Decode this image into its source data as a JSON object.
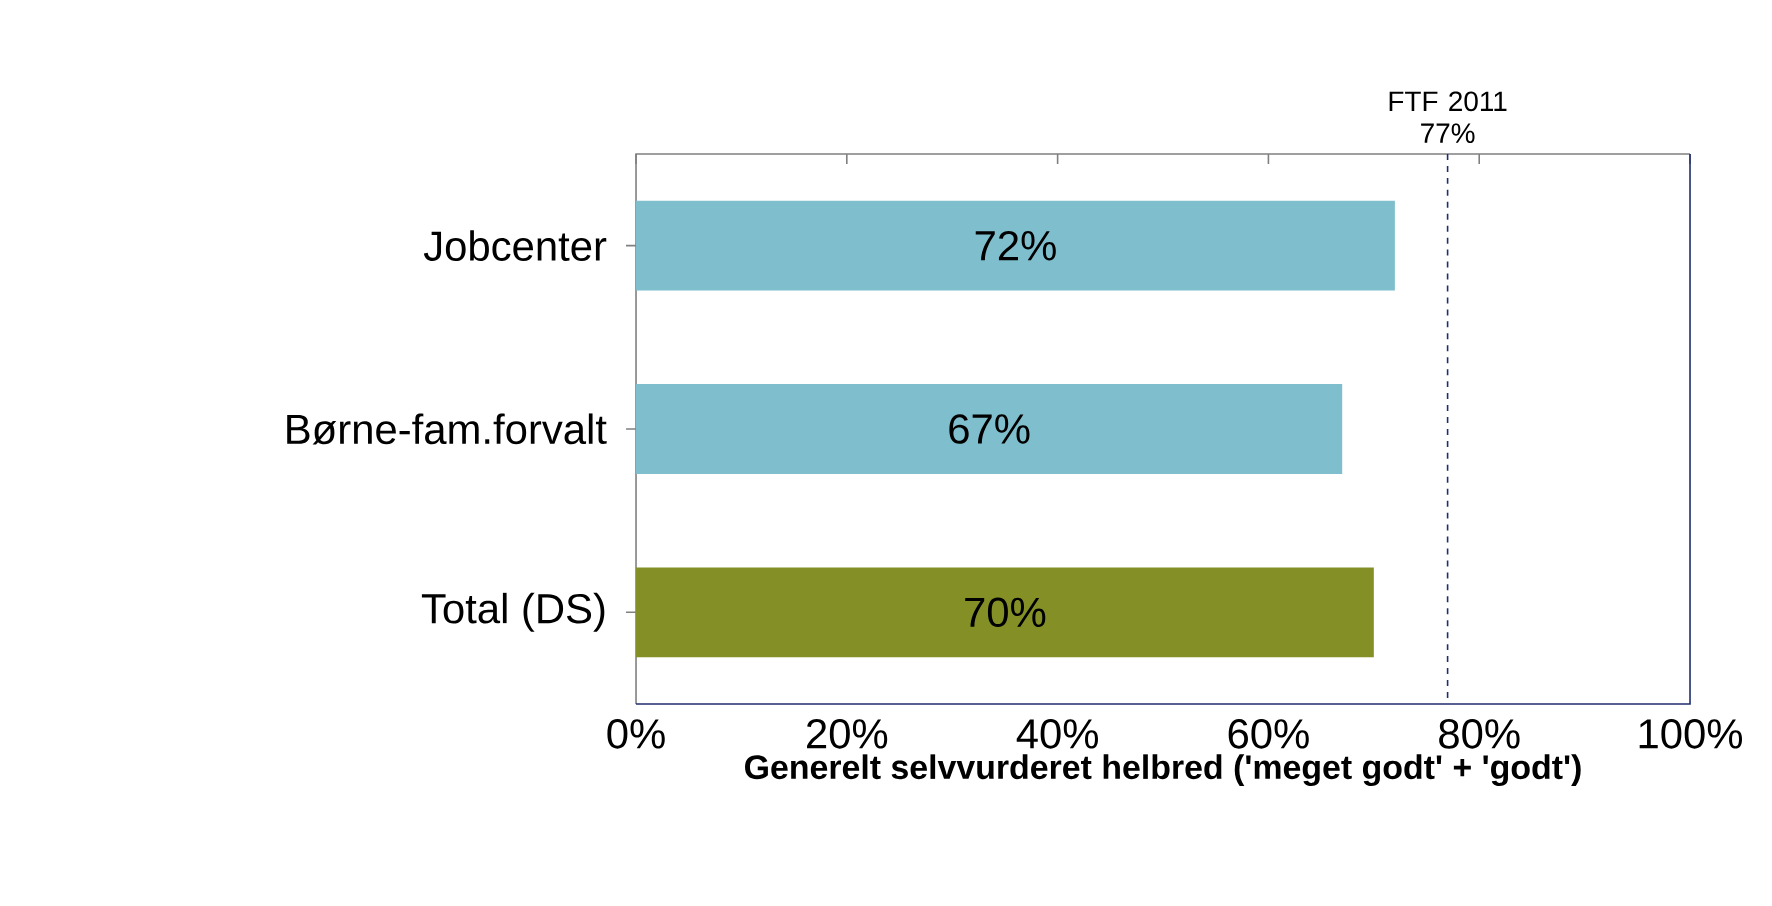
{
  "chart_data": {
    "type": "bar",
    "orientation": "horizontal",
    "xlabel": "Generelt selvvurderet helbred ('meget godt' + 'godt')",
    "categories": [
      "Jobcenter",
      "Børne-fam.forvalt",
      "Total (DS)"
    ],
    "values": [
      72,
      67,
      70
    ],
    "colors": [
      "#7fbecc",
      "#7fbecc",
      "#848f26"
    ],
    "value_labels": [
      "72%",
      "67%",
      "70%"
    ],
    "xlim": [
      0,
      100
    ],
    "xticks": [
      {
        "value": 0,
        "label": "0%"
      },
      {
        "value": 20,
        "label": "20%"
      },
      {
        "value": 40,
        "label": "40%"
      },
      {
        "value": 60,
        "label": "60%"
      },
      {
        "value": 80,
        "label": "80%"
      },
      {
        "value": 100,
        "label": "100%"
      }
    ],
    "ref_lines": [
      {
        "axis": "x",
        "value": 77,
        "label": "FTF 2011 77%",
        "color": "#1f2d6e",
        "line_style": "dashed"
      }
    ]
  }
}
